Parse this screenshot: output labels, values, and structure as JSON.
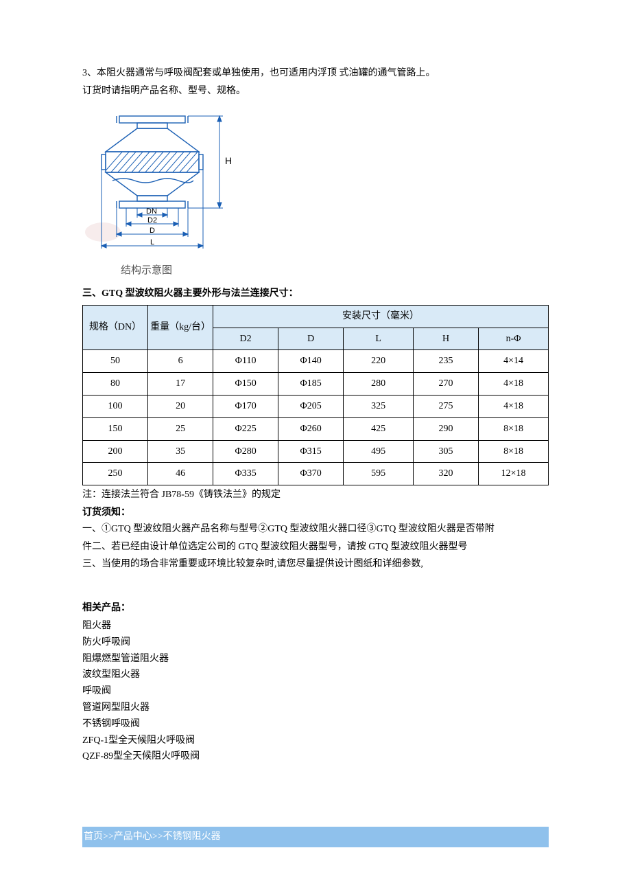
{
  "intro": {
    "line1": "3、本阻火器通常与呼吸阀配套或单独使用，也可适用内浮顶 式油罐的通气管路上。",
    "line2": "订货时请指明产品名称、型号、规格。"
  },
  "diagram": {
    "caption": "结构示意图",
    "labels": {
      "H": "H",
      "DN": "DN",
      "D2": "D2",
      "D": "D",
      "L": "L"
    },
    "colors": {
      "stroke": "#1a5fb4",
      "hatch": "#1a5fb4",
      "bg": "#ffffff",
      "faint": "#d9a6a6"
    }
  },
  "section3_title": "三、GTQ 型波纹阻火器主要外形与法兰连接尺寸：",
  "table": {
    "header_row1_spec": "规格（DN）",
    "header_row1_weight": "重量（kg/台）",
    "header_row1_install": "安装尺寸（毫米）",
    "subheaders": [
      "D2",
      "D",
      "L",
      "H",
      "n-Φ"
    ],
    "rows": [
      [
        "50",
        "6",
        "Φ110",
        "Φ140",
        "220",
        "235",
        "4×14"
      ],
      [
        "80",
        "17",
        "Φ150",
        "Φ185",
        "280",
        "270",
        "4×18"
      ],
      [
        "100",
        "20",
        "Φ170",
        "Φ205",
        "325",
        "275",
        "4×18"
      ],
      [
        "150",
        "25",
        "Φ225",
        "Φ260",
        "425",
        "290",
        "8×18"
      ],
      [
        "200",
        "35",
        "Φ280",
        "Φ315",
        "495",
        "305",
        "8×18"
      ],
      [
        "250",
        "46",
        "Φ335",
        "Φ370",
        "595",
        "320",
        "12×18"
      ]
    ],
    "col_widths": [
      "14%",
      "14%",
      "14%",
      "14%",
      "15%",
      "14%",
      "15%"
    ]
  },
  "footnote": "注：连接法兰符合 JB78-59《铸铁法兰》的规定",
  "order": {
    "title": "订货须知：",
    "line1": "一、①GTQ 型波纹阻火器产品名称与型号②GTQ 型波纹阻火器口径③GTQ 型波纹阻火器是否带附",
    "line2": "件二、若已经由设计单位选定公司的 GTQ 型波纹阻火器型号，请按 GTQ 型波纹阻火器型号",
    "line3": "三、当使用的场合非常重要或环境比较复杂时,请您尽量提供设计图纸和详细参数,"
  },
  "related": {
    "title": "相关产品：",
    "items": [
      "阻火器",
      "防火呼吸阀",
      "阻爆燃型管道阻火器",
      "波纹型阻火器",
      "呼吸阀",
      "管道网型阻火器",
      "不锈钢呼吸阀",
      "ZFQ-1型全天候阻火呼吸阀",
      "QZF-89型全天候阻火呼吸阀"
    ]
  },
  "breadcrumb": {
    "home": "首页",
    "sep": ">>",
    "center": "产品中心",
    "product": "不锈钢阻火器"
  }
}
